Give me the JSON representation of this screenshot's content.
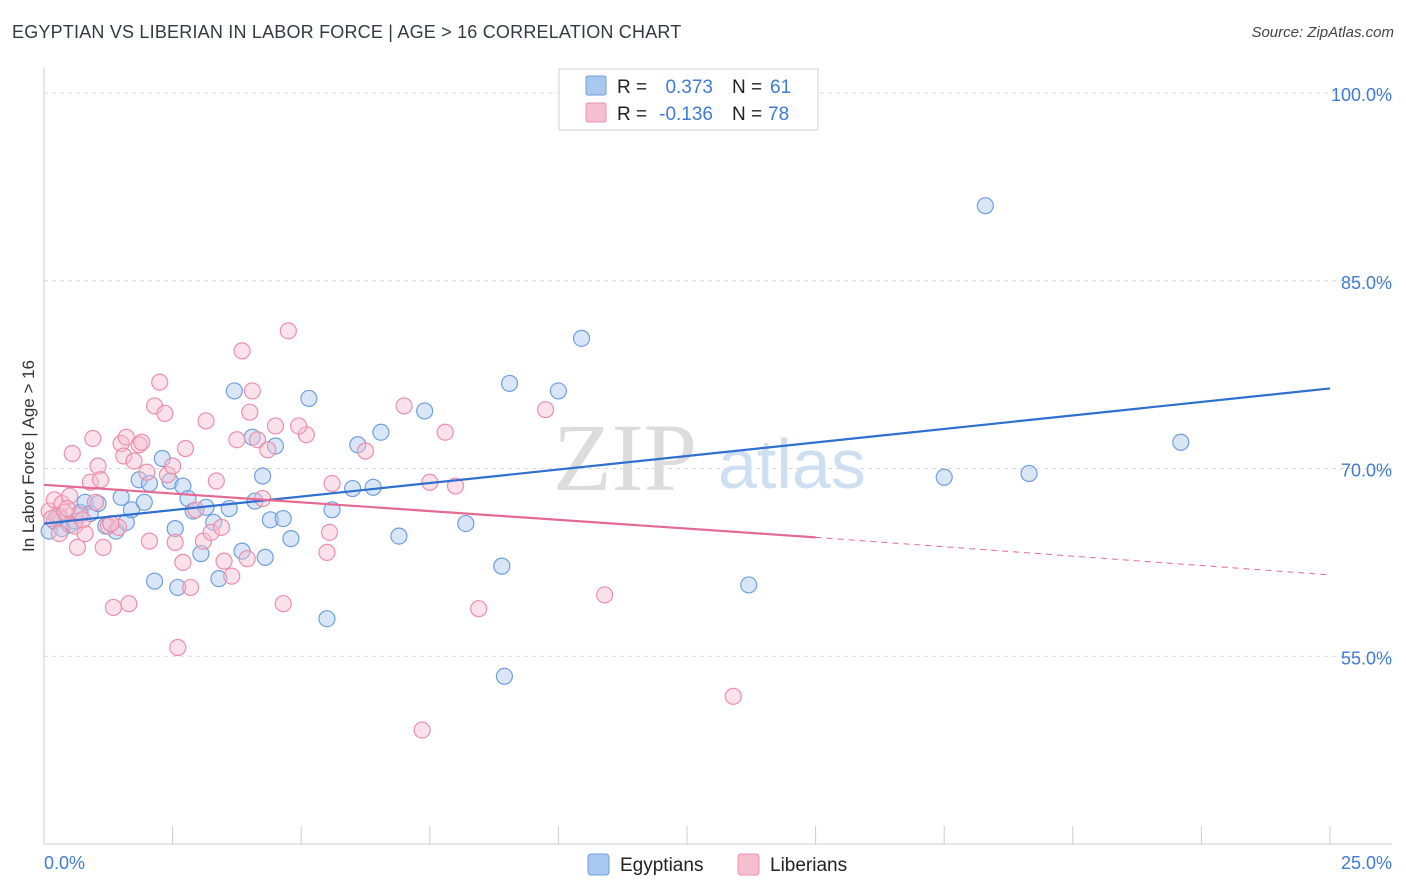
{
  "title": "EGYPTIAN VS LIBERIAN IN LABOR FORCE | AGE > 16 CORRELATION CHART",
  "source": "Source: ZipAtlas.com",
  "watermark": {
    "zip": "ZIP",
    "atlas": "atlas"
  },
  "colors": {
    "egyptians_fill": "#a9c8f0",
    "egyptians_stroke": "#6f9fde",
    "egyptians_line": "#2f6fd0",
    "liberians_fill": "#f6bfd0",
    "liberians_stroke": "#ec8fab",
    "liberians_line": "#e46a93",
    "grid": "#d9d9d9",
    "tick_label": "#3f7ad6"
  },
  "legend_top": {
    "rows": [
      {
        "r_label": "R =",
        "r_value": "0.373",
        "n_label": "N =",
        "n_value": "61"
      },
      {
        "r_label": "R =",
        "r_value": "-0.136",
        "n_label": "N =",
        "n_value": "78"
      }
    ]
  },
  "legend_bottom": {
    "items": [
      "Egyptians",
      "Liberians"
    ]
  },
  "chart_data": {
    "type": "scatter",
    "xlabel": "",
    "ylabel": "In Labor Force | Age > 16",
    "xlim": [
      0,
      25
    ],
    "ylim": [
      40,
      102
    ],
    "x_tick_labels": [
      "0.0%",
      "25.0%"
    ],
    "y_ticks": [
      55,
      70,
      85,
      100
    ],
    "y_tick_labels": [
      "55.0%",
      "70.0%",
      "85.0%",
      "100.0%"
    ],
    "grid": "horizontal dashed",
    "legend_position": "top-center",
    "series": [
      {
        "name": "Egyptians",
        "r": 0.373,
        "n": 61,
        "trend": {
          "x": [
            0,
            25
          ],
          "y": [
            65.6,
            76.4
          ]
        },
        "points": [
          [
            0.1,
            65.0
          ],
          [
            0.2,
            65.8
          ],
          [
            0.3,
            66.2
          ],
          [
            0.35,
            65.2
          ],
          [
            0.5,
            65.5
          ],
          [
            0.6,
            65.8
          ],
          [
            0.7,
            66.5
          ],
          [
            0.8,
            67.3
          ],
          [
            0.9,
            66.4
          ],
          [
            1.05,
            67.2
          ],
          [
            1.2,
            65.4
          ],
          [
            1.4,
            65.0
          ],
          [
            1.5,
            67.7
          ],
          [
            1.6,
            65.7
          ],
          [
            1.7,
            66.7
          ],
          [
            1.85,
            69.1
          ],
          [
            1.95,
            67.3
          ],
          [
            2.05,
            68.8
          ],
          [
            2.15,
            61.0
          ],
          [
            2.3,
            70.8
          ],
          [
            2.45,
            69.0
          ],
          [
            2.55,
            65.2
          ],
          [
            2.6,
            60.5
          ],
          [
            2.7,
            68.6
          ],
          [
            2.8,
            67.6
          ],
          [
            2.9,
            66.6
          ],
          [
            3.05,
            63.2
          ],
          [
            3.15,
            66.9
          ],
          [
            3.3,
            65.7
          ],
          [
            3.4,
            61.2
          ],
          [
            3.6,
            66.8
          ],
          [
            3.7,
            76.2
          ],
          [
            3.85,
            63.4
          ],
          [
            4.05,
            72.5
          ],
          [
            4.1,
            67.4
          ],
          [
            4.25,
            69.4
          ],
          [
            4.3,
            62.9
          ],
          [
            4.4,
            65.9
          ],
          [
            4.5,
            71.8
          ],
          [
            4.65,
            66.0
          ],
          [
            4.8,
            64.4
          ],
          [
            5.15,
            75.6
          ],
          [
            5.5,
            58.0
          ],
          [
            5.6,
            66.7
          ],
          [
            6.0,
            68.4
          ],
          [
            6.1,
            71.9
          ],
          [
            6.4,
            68.5
          ],
          [
            6.55,
            72.9
          ],
          [
            6.9,
            64.6
          ],
          [
            7.4,
            74.6
          ],
          [
            8.2,
            65.6
          ],
          [
            8.9,
            62.2
          ],
          [
            8.95,
            53.4
          ],
          [
            9.05,
            76.8
          ],
          [
            10.0,
            76.2
          ],
          [
            10.45,
            80.4
          ],
          [
            13.7,
            60.7
          ],
          [
            17.5,
            69.3
          ],
          [
            18.3,
            91.0
          ],
          [
            19.15,
            69.6
          ],
          [
            22.1,
            72.1
          ]
        ]
      },
      {
        "name": "Liberians",
        "r": -0.136,
        "n": 78,
        "trend": {
          "x": [
            0,
            15
          ],
          "y": [
            68.7,
            64.5
          ]
        },
        "trend_dashed": {
          "x": [
            15,
            25
          ],
          "y": [
            64.5,
            61.5
          ]
        },
        "points": [
          [
            0.1,
            66.6
          ],
          [
            0.2,
            67.5
          ],
          [
            0.25,
            66.2
          ],
          [
            0.3,
            64.8
          ],
          [
            0.35,
            67.2
          ],
          [
            0.4,
            66.5
          ],
          [
            0.5,
            67.8
          ],
          [
            0.55,
            71.2
          ],
          [
            0.6,
            65.4
          ],
          [
            0.65,
            63.7
          ],
          [
            0.7,
            66.3
          ],
          [
            0.8,
            64.8
          ],
          [
            0.9,
            68.9
          ],
          [
            0.95,
            72.4
          ],
          [
            1.0,
            67.3
          ],
          [
            1.05,
            70.2
          ],
          [
            1.1,
            69.1
          ],
          [
            1.15,
            63.7
          ],
          [
            1.25,
            65.4
          ],
          [
            1.35,
            58.9
          ],
          [
            1.45,
            65.3
          ],
          [
            1.5,
            72.0
          ],
          [
            1.55,
            71.0
          ],
          [
            1.6,
            72.5
          ],
          [
            1.65,
            59.2
          ],
          [
            1.75,
            70.6
          ],
          [
            1.85,
            71.9
          ],
          [
            1.9,
            72.1
          ],
          [
            2.0,
            69.7
          ],
          [
            2.05,
            64.2
          ],
          [
            2.15,
            75.0
          ],
          [
            2.25,
            76.9
          ],
          [
            2.35,
            74.4
          ],
          [
            2.4,
            69.5
          ],
          [
            2.5,
            70.2
          ],
          [
            2.55,
            64.1
          ],
          [
            2.6,
            55.7
          ],
          [
            2.75,
            71.6
          ],
          [
            2.85,
            60.5
          ],
          [
            2.95,
            66.7
          ],
          [
            3.1,
            64.2
          ],
          [
            3.15,
            73.8
          ],
          [
            3.25,
            64.9
          ],
          [
            3.35,
            69.0
          ],
          [
            3.5,
            62.6
          ],
          [
            3.65,
            61.4
          ],
          [
            3.75,
            72.3
          ],
          [
            3.85,
            79.4
          ],
          [
            3.95,
            62.8
          ],
          [
            4.0,
            74.5
          ],
          [
            4.05,
            76.2
          ],
          [
            4.15,
            72.3
          ],
          [
            4.25,
            67.6
          ],
          [
            4.35,
            71.5
          ],
          [
            4.5,
            73.4
          ],
          [
            4.65,
            59.2
          ],
          [
            4.75,
            81.0
          ],
          [
            5.1,
            72.7
          ],
          [
            5.5,
            63.3
          ],
          [
            5.55,
            64.9
          ],
          [
            5.6,
            68.8
          ],
          [
            6.25,
            71.4
          ],
          [
            7.0,
            75.0
          ],
          [
            7.35,
            49.1
          ],
          [
            7.5,
            68.9
          ],
          [
            7.8,
            72.9
          ],
          [
            8.0,
            68.6
          ],
          [
            8.45,
            58.8
          ],
          [
            9.75,
            74.7
          ],
          [
            10.9,
            59.9
          ],
          [
            13.4,
            51.8
          ],
          [
            0.15,
            66.0
          ],
          [
            0.45,
            66.8
          ],
          [
            0.75,
            65.9
          ],
          [
            1.3,
            65.6
          ],
          [
            2.7,
            62.5
          ],
          [
            3.45,
            65.3
          ],
          [
            4.95,
            73.4
          ]
        ]
      }
    ]
  }
}
